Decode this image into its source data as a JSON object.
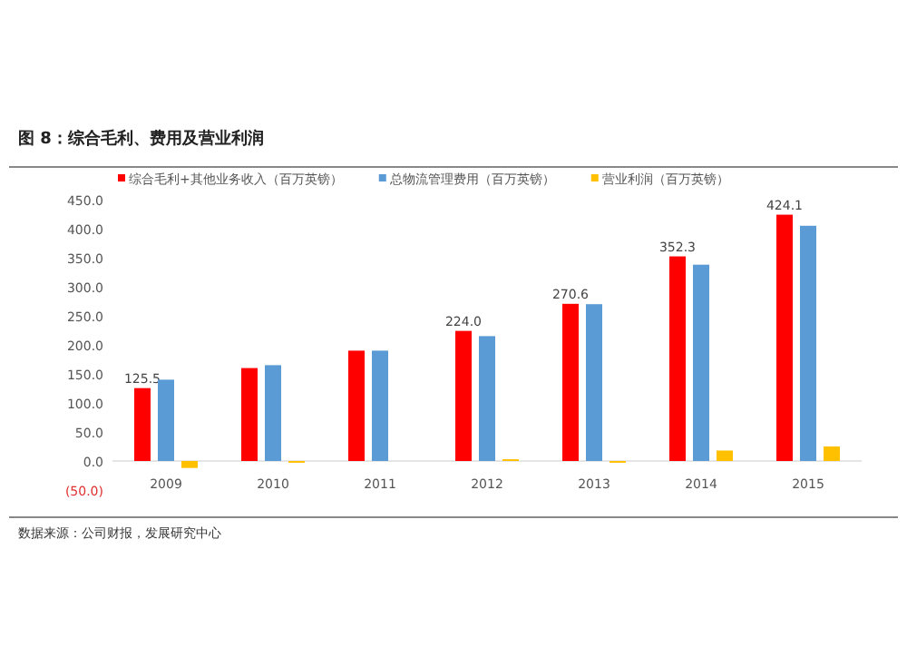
{
  "chart_data": {
    "type": "bar",
    "title": "图 8：综合毛利、费用及营业利润",
    "categories": [
      "2009",
      "2010",
      "2011",
      "2012",
      "2013",
      "2014",
      "2015"
    ],
    "series": [
      {
        "name": "综合毛利+其他业务收入（百万英镑）",
        "color": "#ff0000",
        "values": [
          125.5,
          160,
          190,
          224.0,
          270.6,
          352.3,
          424.1
        ],
        "value_labels": [
          "125.5",
          null,
          null,
          "224.0",
          "270.6",
          "352.3",
          "424.1"
        ]
      },
      {
        "name": "总物流管理费用（百万英镑）",
        "color": "#5b9bd5",
        "values": [
          140,
          165,
          190,
          215,
          270,
          338,
          405
        ]
      },
      {
        "name": "营业利润（百万英镑）",
        "color": "#ffc000",
        "values": [
          -12,
          -3,
          null,
          3,
          -3,
          18,
          25
        ]
      }
    ],
    "ylim": [
      -50,
      450
    ],
    "yticks": [
      {
        "value": -50,
        "label": "(50.0)"
      },
      {
        "value": 0,
        "label": "0.0"
      },
      {
        "value": 50,
        "label": "50.0"
      },
      {
        "value": 100,
        "label": "100.0"
      },
      {
        "value": 150,
        "label": "150.0"
      },
      {
        "value": 200,
        "label": "200.0"
      },
      {
        "value": 250,
        "label": "250.0"
      },
      {
        "value": 300,
        "label": "300.0"
      },
      {
        "value": 350,
        "label": "350.0"
      },
      {
        "value": 400,
        "label": "400.0"
      },
      {
        "value": 450,
        "label": "450.0"
      }
    ],
    "legend": "top",
    "annotations": [
      "数据来源：公司财报，发展研究中心"
    ]
  }
}
